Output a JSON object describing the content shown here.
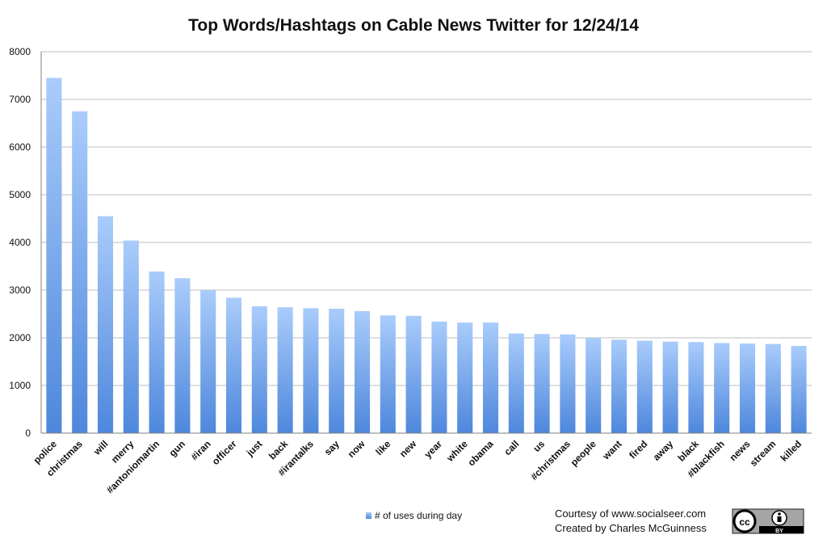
{
  "chart_data": {
    "type": "bar",
    "title": "Top Words/Hashtags on Cable News Twitter for 12/24/14",
    "xlabel": "",
    "ylabel": "",
    "ylim": [
      0,
      8000
    ],
    "yticks": [
      0,
      1000,
      2000,
      3000,
      4000,
      5000,
      6000,
      7000,
      8000
    ],
    "grid": true,
    "legend_position": "bottom",
    "categories": [
      "police",
      "christmas",
      "will",
      "merry",
      "#antoniomartin",
      "gun",
      "#iran",
      "officer",
      "just",
      "back",
      "#irantalks",
      "say",
      "now",
      "like",
      "new",
      "year",
      "white",
      "obama",
      "call",
      "us",
      "#christmas",
      "people",
      "want",
      "fired",
      "away",
      "black",
      "#blackfish",
      "news",
      "stream",
      "killed"
    ],
    "series": [
      {
        "name": "# of uses during day",
        "color": "#5b8fd9",
        "values": [
          7450,
          6750,
          4550,
          4040,
          3390,
          3250,
          3000,
          2840,
          2660,
          2640,
          2620,
          2610,
          2560,
          2470,
          2460,
          2340,
          2320,
          2320,
          2090,
          2080,
          2070,
          2000,
          1960,
          1940,
          1920,
          1910,
          1890,
          1880,
          1870,
          1830
        ]
      }
    ]
  },
  "credits": {
    "line1": "Courtesy of www.socialseer.com",
    "line2": "Created by Charles McGuinness"
  },
  "license_badge": {
    "cc": "cc",
    "by": "BY",
    "icon": "creative-commons-by-icon"
  },
  "colors": {
    "bar_top": "#a9ccfb",
    "bar_bottom": "#4e87dc",
    "grid": "#bdbdbd",
    "axis": "#7f7f7f"
  }
}
